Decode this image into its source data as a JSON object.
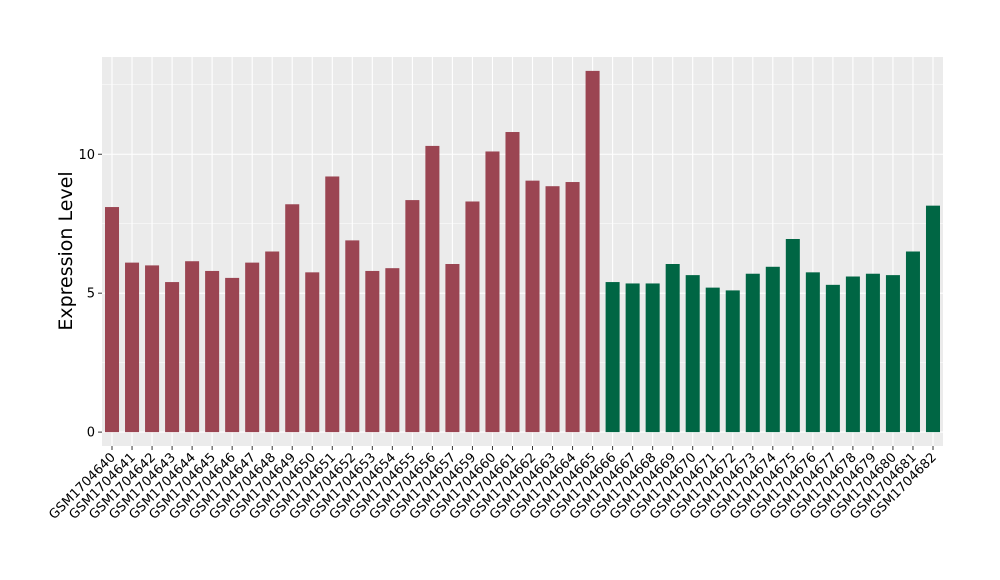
{
  "chart_data": {
    "type": "bar",
    "title": "",
    "xlabel": "",
    "ylabel": "Expression Level",
    "ylim": [
      -0.5,
      13.5
    ],
    "yticks": [
      0,
      5,
      10
    ],
    "grid": true,
    "legend": "none",
    "categories": [
      "GSM1704640",
      "GSM1704641",
      "GSM1704642",
      "GSM1704643",
      "GSM1704644",
      "GSM1704645",
      "GSM1704646",
      "GSM1704647",
      "GSM1704648",
      "GSM1704649",
      "GSM1704650",
      "GSM1704651",
      "GSM1704652",
      "GSM1704653",
      "GSM1704654",
      "GSM1704655",
      "GSM1704656",
      "GSM1704657",
      "GSM1704659",
      "GSM1704660",
      "GSM1704661",
      "GSM1704662",
      "GSM1704663",
      "GSM1704664",
      "GSM1704665",
      "GSM1704666",
      "GSM1704667",
      "GSM1704668",
      "GSM1704669",
      "GSM1704670",
      "GSM1704671",
      "GSM1704672",
      "GSM1704673",
      "GSM1704674",
      "GSM1704675",
      "GSM1704676",
      "GSM1704677",
      "GSM1704678",
      "GSM1704679",
      "GSM1704680",
      "GSM1704681",
      "GSM1704682"
    ],
    "series": [
      {
        "color": "#9b4552",
        "values": [
          8.1,
          6.1,
          6.0,
          5.4,
          6.15,
          5.8,
          5.55,
          6.1,
          6.5,
          8.2,
          5.75,
          9.2,
          6.9,
          5.8,
          5.9,
          8.35,
          10.3,
          6.05,
          8.3,
          10.1,
          10.8,
          9.05,
          8.85,
          9.0,
          13.0,
          null,
          null,
          null,
          null,
          null,
          null,
          null,
          null,
          null,
          null,
          null,
          null,
          null,
          null,
          null,
          null,
          null
        ]
      },
      {
        "color": "#006644",
        "values": [
          null,
          null,
          null,
          null,
          null,
          null,
          null,
          null,
          null,
          null,
          null,
          null,
          null,
          null,
          null,
          null,
          null,
          null,
          null,
          null,
          null,
          null,
          null,
          null,
          null,
          5.4,
          5.35,
          5.35,
          6.05,
          5.65,
          5.2,
          5.1,
          5.7,
          5.95,
          6.95,
          5.75,
          5.3,
          5.6,
          5.7,
          5.65,
          6.5,
          8.15
        ]
      }
    ]
  }
}
